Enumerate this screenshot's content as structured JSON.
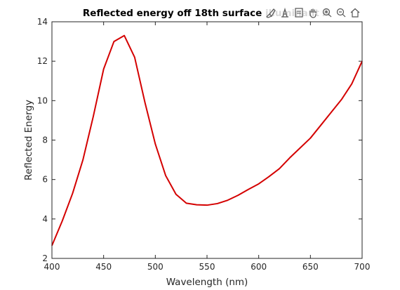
{
  "chart_data": {
    "type": "line",
    "title": "Reflected energy off 18th surface illuminant A",
    "xlabel": "Wavelength (nm)",
    "ylabel": "Reflected Energy",
    "xlim": [
      400,
      700
    ],
    "ylim": [
      2,
      14
    ],
    "xticks": [
      400,
      450,
      500,
      550,
      600,
      650,
      700
    ],
    "yticks": [
      2,
      4,
      6,
      8,
      10,
      12,
      14
    ],
    "grid": false,
    "series": [
      {
        "color": "#d40000",
        "x": [
          400,
          410,
          420,
          430,
          440,
          450,
          460,
          470,
          480,
          490,
          500,
          510,
          520,
          530,
          540,
          550,
          560,
          570,
          580,
          590,
          600,
          610,
          620,
          630,
          640,
          650,
          660,
          670,
          680,
          690,
          700
        ],
        "y": [
          2.65,
          3.9,
          5.3,
          7.0,
          9.2,
          11.6,
          13.0,
          13.3,
          12.2,
          9.9,
          7.8,
          6.2,
          5.25,
          4.8,
          4.72,
          4.7,
          4.78,
          4.95,
          5.2,
          5.5,
          5.78,
          6.15,
          6.55,
          7.1,
          7.6,
          8.1,
          8.75,
          9.4,
          10.05,
          10.85,
          12.0
        ]
      }
    ]
  },
  "toolbar": {
    "icons": [
      "brush-icon",
      "data-tips-icon",
      "data-cursor-icon",
      "pan-icon",
      "zoom-in-icon",
      "zoom-out-icon",
      "home-icon"
    ]
  }
}
